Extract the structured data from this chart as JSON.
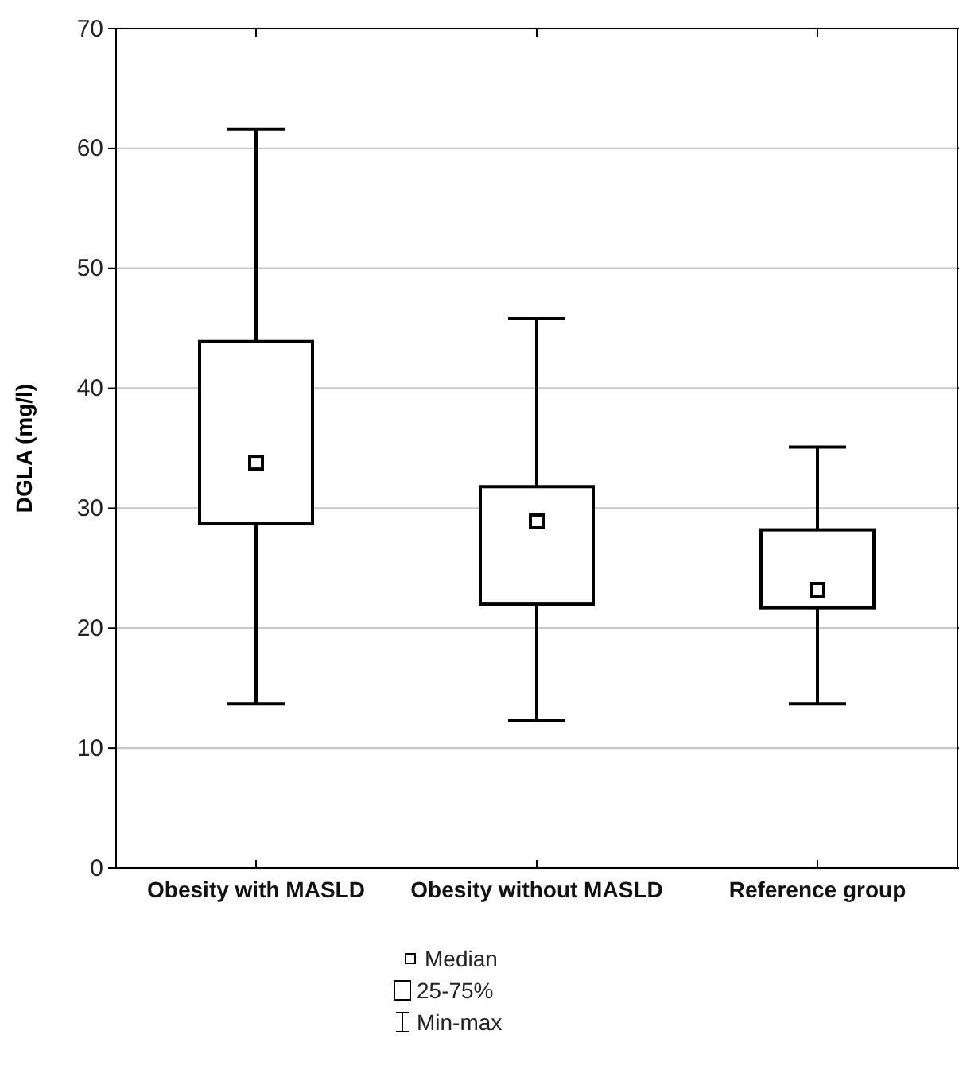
{
  "chart_data": {
    "type": "box",
    "ylabel": "DGLA (mg/l)",
    "categories": [
      "Obesity with MASLD",
      "Obesity without MASLD",
      "Reference group"
    ],
    "boxes": [
      {
        "low": 13.7,
        "q1": 28.7,
        "median": 33.8,
        "q3": 43.9,
        "high": 61.6
      },
      {
        "low": 12.3,
        "q1": 22.0,
        "median": 28.9,
        "q3": 31.8,
        "high": 45.8
      },
      {
        "low": 13.7,
        "q1": 21.7,
        "median": 23.2,
        "q3": 28.2,
        "high": 35.1
      }
    ],
    "ylim": [
      0,
      70
    ],
    "yticks": [
      0,
      10,
      20,
      30,
      40,
      50,
      60,
      70
    ],
    "grid": "y",
    "annotations": [
      "Median",
      "25-75%",
      "Min-max"
    ]
  }
}
